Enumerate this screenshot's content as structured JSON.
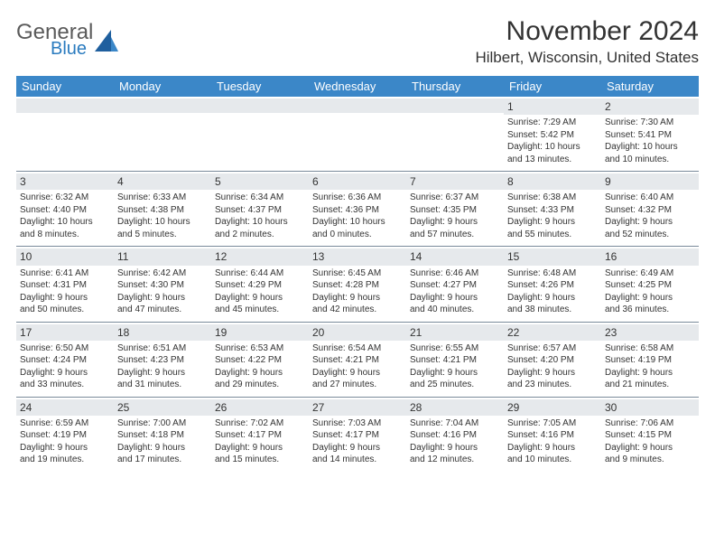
{
  "brand": {
    "word1": "General",
    "word2": "Blue",
    "accent": "#2a7bbf"
  },
  "title": "November 2024",
  "location": "Hilbert, Wisconsin, United States",
  "header_bg": "#3b87c8",
  "daynum_bg": "#e6e9ec",
  "divider": "#7a8a9a",
  "days": [
    "Sunday",
    "Monday",
    "Tuesday",
    "Wednesday",
    "Thursday",
    "Friday",
    "Saturday"
  ],
  "weeks": [
    [
      null,
      null,
      null,
      null,
      null,
      {
        "n": "1",
        "sr": "7:29 AM",
        "ss": "5:42 PM",
        "d1": "Daylight: 10 hours",
        "d2": "and 13 minutes."
      },
      {
        "n": "2",
        "sr": "7:30 AM",
        "ss": "5:41 PM",
        "d1": "Daylight: 10 hours",
        "d2": "and 10 minutes."
      }
    ],
    [
      {
        "n": "3",
        "sr": "6:32 AM",
        "ss": "4:40 PM",
        "d1": "Daylight: 10 hours",
        "d2": "and 8 minutes."
      },
      {
        "n": "4",
        "sr": "6:33 AM",
        "ss": "4:38 PM",
        "d1": "Daylight: 10 hours",
        "d2": "and 5 minutes."
      },
      {
        "n": "5",
        "sr": "6:34 AM",
        "ss": "4:37 PM",
        "d1": "Daylight: 10 hours",
        "d2": "and 2 minutes."
      },
      {
        "n": "6",
        "sr": "6:36 AM",
        "ss": "4:36 PM",
        "d1": "Daylight: 10 hours",
        "d2": "and 0 minutes."
      },
      {
        "n": "7",
        "sr": "6:37 AM",
        "ss": "4:35 PM",
        "d1": "Daylight: 9 hours",
        "d2": "and 57 minutes."
      },
      {
        "n": "8",
        "sr": "6:38 AM",
        "ss": "4:33 PM",
        "d1": "Daylight: 9 hours",
        "d2": "and 55 minutes."
      },
      {
        "n": "9",
        "sr": "6:40 AM",
        "ss": "4:32 PM",
        "d1": "Daylight: 9 hours",
        "d2": "and 52 minutes."
      }
    ],
    [
      {
        "n": "10",
        "sr": "6:41 AM",
        "ss": "4:31 PM",
        "d1": "Daylight: 9 hours",
        "d2": "and 50 minutes."
      },
      {
        "n": "11",
        "sr": "6:42 AM",
        "ss": "4:30 PM",
        "d1": "Daylight: 9 hours",
        "d2": "and 47 minutes."
      },
      {
        "n": "12",
        "sr": "6:44 AM",
        "ss": "4:29 PM",
        "d1": "Daylight: 9 hours",
        "d2": "and 45 minutes."
      },
      {
        "n": "13",
        "sr": "6:45 AM",
        "ss": "4:28 PM",
        "d1": "Daylight: 9 hours",
        "d2": "and 42 minutes."
      },
      {
        "n": "14",
        "sr": "6:46 AM",
        "ss": "4:27 PM",
        "d1": "Daylight: 9 hours",
        "d2": "and 40 minutes."
      },
      {
        "n": "15",
        "sr": "6:48 AM",
        "ss": "4:26 PM",
        "d1": "Daylight: 9 hours",
        "d2": "and 38 minutes."
      },
      {
        "n": "16",
        "sr": "6:49 AM",
        "ss": "4:25 PM",
        "d1": "Daylight: 9 hours",
        "d2": "and 36 minutes."
      }
    ],
    [
      {
        "n": "17",
        "sr": "6:50 AM",
        "ss": "4:24 PM",
        "d1": "Daylight: 9 hours",
        "d2": "and 33 minutes."
      },
      {
        "n": "18",
        "sr": "6:51 AM",
        "ss": "4:23 PM",
        "d1": "Daylight: 9 hours",
        "d2": "and 31 minutes."
      },
      {
        "n": "19",
        "sr": "6:53 AM",
        "ss": "4:22 PM",
        "d1": "Daylight: 9 hours",
        "d2": "and 29 minutes."
      },
      {
        "n": "20",
        "sr": "6:54 AM",
        "ss": "4:21 PM",
        "d1": "Daylight: 9 hours",
        "d2": "and 27 minutes."
      },
      {
        "n": "21",
        "sr": "6:55 AM",
        "ss": "4:21 PM",
        "d1": "Daylight: 9 hours",
        "d2": "and 25 minutes."
      },
      {
        "n": "22",
        "sr": "6:57 AM",
        "ss": "4:20 PM",
        "d1": "Daylight: 9 hours",
        "d2": "and 23 minutes."
      },
      {
        "n": "23",
        "sr": "6:58 AM",
        "ss": "4:19 PM",
        "d1": "Daylight: 9 hours",
        "d2": "and 21 minutes."
      }
    ],
    [
      {
        "n": "24",
        "sr": "6:59 AM",
        "ss": "4:19 PM",
        "d1": "Daylight: 9 hours",
        "d2": "and 19 minutes."
      },
      {
        "n": "25",
        "sr": "7:00 AM",
        "ss": "4:18 PM",
        "d1": "Daylight: 9 hours",
        "d2": "and 17 minutes."
      },
      {
        "n": "26",
        "sr": "7:02 AM",
        "ss": "4:17 PM",
        "d1": "Daylight: 9 hours",
        "d2": "and 15 minutes."
      },
      {
        "n": "27",
        "sr": "7:03 AM",
        "ss": "4:17 PM",
        "d1": "Daylight: 9 hours",
        "d2": "and 14 minutes."
      },
      {
        "n": "28",
        "sr": "7:04 AM",
        "ss": "4:16 PM",
        "d1": "Daylight: 9 hours",
        "d2": "and 12 minutes."
      },
      {
        "n": "29",
        "sr": "7:05 AM",
        "ss": "4:16 PM",
        "d1": "Daylight: 9 hours",
        "d2": "and 10 minutes."
      },
      {
        "n": "30",
        "sr": "7:06 AM",
        "ss": "4:15 PM",
        "d1": "Daylight: 9 hours",
        "d2": "and 9 minutes."
      }
    ]
  ],
  "labels": {
    "sunrise": "Sunrise:",
    "sunset": "Sunset:"
  }
}
